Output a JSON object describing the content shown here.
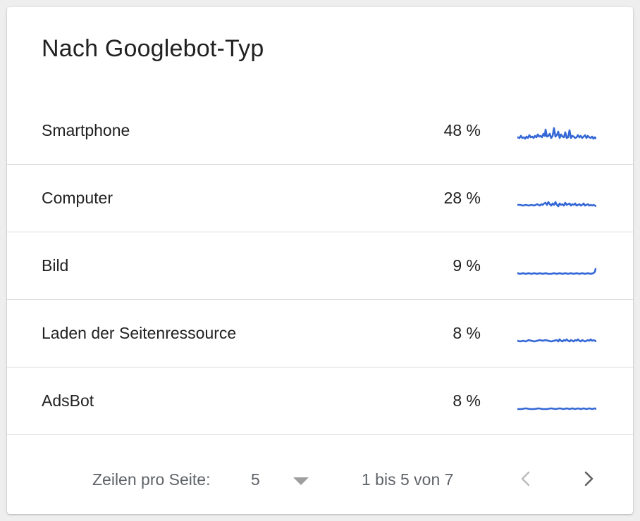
{
  "card": {
    "title": "Nach Googlebot-Typ"
  },
  "rows": [
    {
      "label": "Smartphone",
      "value": "48 %",
      "share": 48
    },
    {
      "label": "Computer",
      "value": "28 %",
      "share": 28
    },
    {
      "label": "Bild",
      "value": "9 %",
      "share": 9
    },
    {
      "label": "Laden der Seitenressource",
      "value": "8 %",
      "share": 8
    },
    {
      "label": "AdsBot",
      "value": "8 %",
      "share": 8
    }
  ],
  "footer": {
    "rows_per_page_label": "Zeilen pro Seite:",
    "rows_per_page_value": "5",
    "range_text": "1 bis 5 von 7"
  },
  "colors": {
    "sparkline": "#3367d6",
    "nav_prev_disabled": "#bdbdbd",
    "nav_next": "#616161"
  },
  "icons": {
    "dropdown": "caret-down-icon",
    "prev": "chevron-left-icon",
    "next": "chevron-right-icon"
  }
}
